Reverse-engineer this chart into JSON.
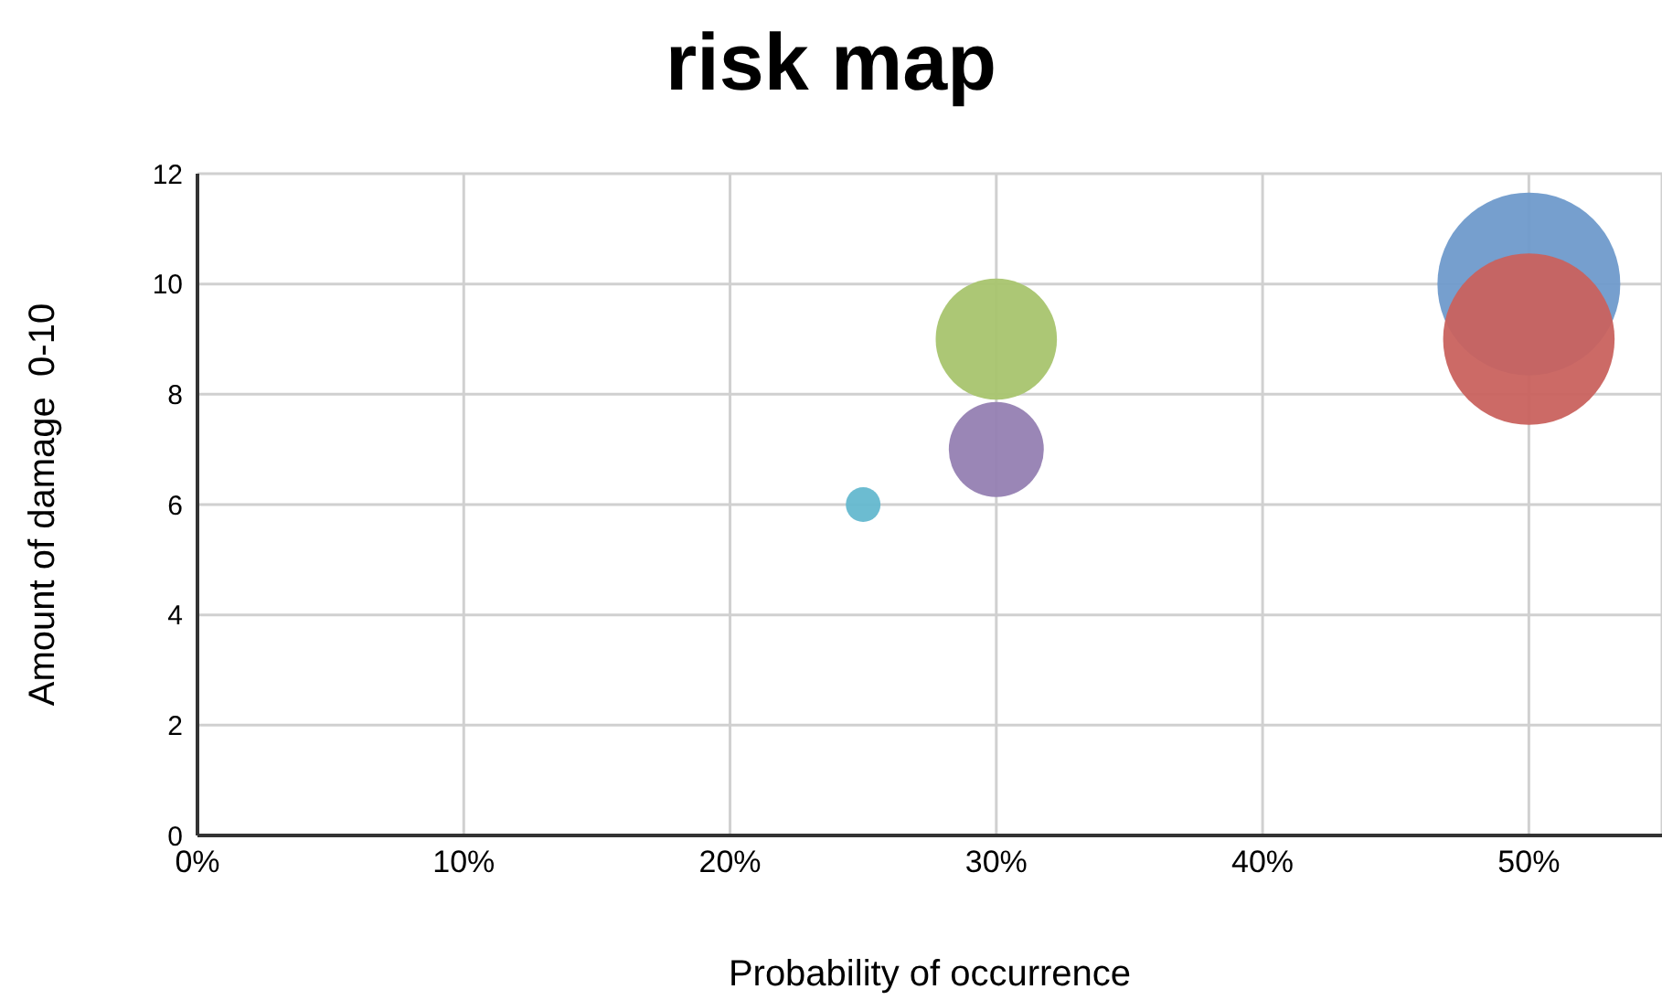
{
  "chart_data": {
    "type": "bubble",
    "title": "risk map",
    "xlabel": "Probability of occurrence",
    "ylabel": "Amount of damage  0-10",
    "xlim": [
      0,
      55
    ],
    "xticks": [
      {
        "value": 0,
        "label": "0%"
      },
      {
        "value": 10,
        "label": "10%"
      },
      {
        "value": 20,
        "label": "20%"
      },
      {
        "value": 30,
        "label": "30%"
      },
      {
        "value": 40,
        "label": "40%"
      },
      {
        "value": 50,
        "label": "50%"
      }
    ],
    "ylim": [
      0,
      12
    ],
    "yticks": [
      0,
      2,
      4,
      6,
      8,
      10,
      12
    ],
    "grid": true,
    "legend": false,
    "series": [
      {
        "color": "#6f9acb",
        "x": [
          50
        ],
        "values": [
          10
        ],
        "sizes": [
          1
        ]
      },
      {
        "color": "#c9625e",
        "x": [
          50
        ],
        "values": [
          9
        ],
        "sizes": [
          0.88
        ]
      },
      {
        "color": "#a8c46e",
        "x": [
          30
        ],
        "values": [
          9
        ],
        "sizes": [
          0.44
        ]
      },
      {
        "color": "#9580b2",
        "x": [
          30
        ],
        "values": [
          7
        ],
        "sizes": [
          0.27
        ]
      },
      {
        "color": "#64b8cf",
        "x": [
          25
        ],
        "values": [
          6
        ],
        "sizes": [
          0.036
        ]
      }
    ]
  }
}
